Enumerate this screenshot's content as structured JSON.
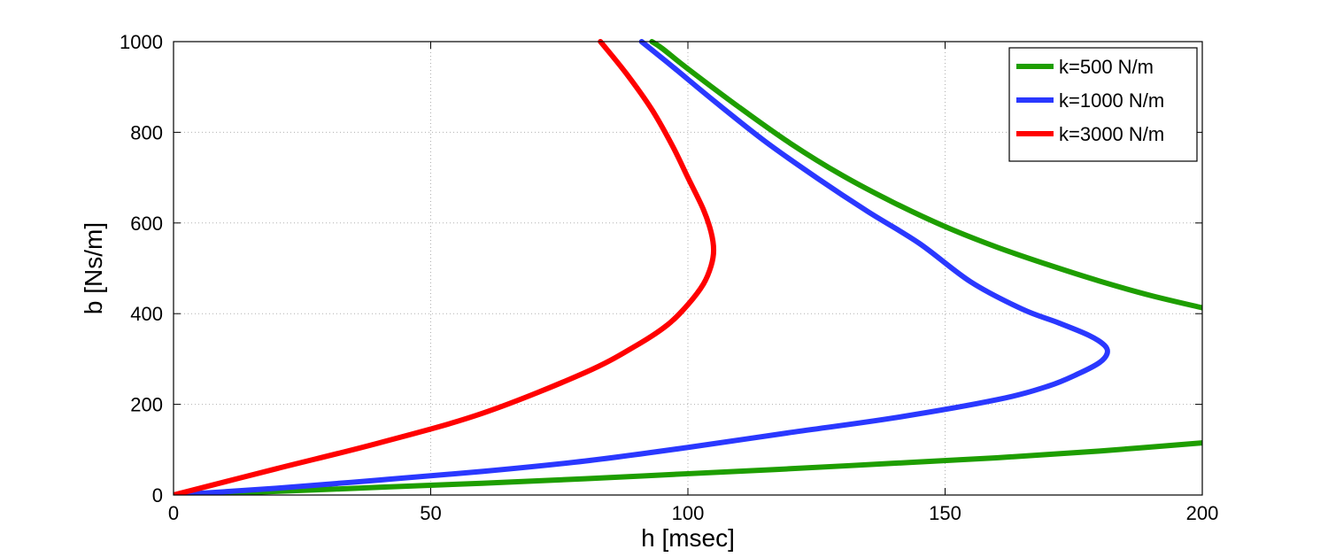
{
  "chart_data": {
    "type": "line",
    "xlabel": "h [msec]",
    "ylabel": "b [Ns/m]",
    "xlim": [
      0,
      200
    ],
    "ylim": [
      0,
      1000
    ],
    "xticks": [
      0,
      50,
      100,
      150,
      200
    ],
    "yticks": [
      0,
      200,
      400,
      600,
      800,
      1000
    ],
    "grid": true,
    "legend_position": "top-right",
    "series": [
      {
        "name": "k=500 N/m",
        "color": "#1e9e00",
        "segments": [
          {
            "x": [
              0,
              20,
              40,
              60,
              80,
              100,
              120,
              140,
              160,
              180,
              200
            ],
            "y": [
              0,
              8,
              17,
              26,
              36,
              47,
              58,
              70,
              82,
              97,
              115
            ]
          },
          {
            "x": [
              93,
              95,
              100,
              110,
              120,
              130,
              140,
              150,
              160,
              170,
              180,
              190,
              200
            ],
            "y": [
              1000,
              985,
              940,
              855,
              775,
              705,
              645,
              592,
              547,
              508,
              472,
              440,
              413
            ]
          }
        ]
      },
      {
        "name": "k=1000 N/m",
        "color": "#2a38ff",
        "segments": [
          {
            "x": [
              0,
              20,
              40,
              60,
              80,
              100,
              120,
              140,
              160,
              170,
              176,
              180,
              181.5,
              181,
              178,
              172,
              165,
              155,
              145,
              135,
              125,
              115,
              105,
              97,
              91
            ],
            "y": [
              0,
              15,
              33,
              52,
              75,
              105,
              138,
              170,
              210,
              240,
              268,
              292,
              312,
              330,
              352,
              380,
              410,
              470,
              555,
              625,
              700,
              780,
              870,
              945,
              1000
            ]
          }
        ]
      },
      {
        "name": "k=3000 N/m",
        "color": "#ff0000",
        "segments": [
          {
            "x": [
              0,
              20,
              40,
              60,
              80,
              90,
              96,
              100,
              103,
              104.5,
              105,
              104.5,
              103,
              100,
              97,
              93,
              88,
              83
            ],
            "y": [
              0,
              58,
              115,
              180,
              270,
              330,
              375,
              420,
              465,
              505,
              540,
              580,
              630,
              700,
              770,
              850,
              930,
              1000
            ]
          }
        ]
      }
    ]
  }
}
